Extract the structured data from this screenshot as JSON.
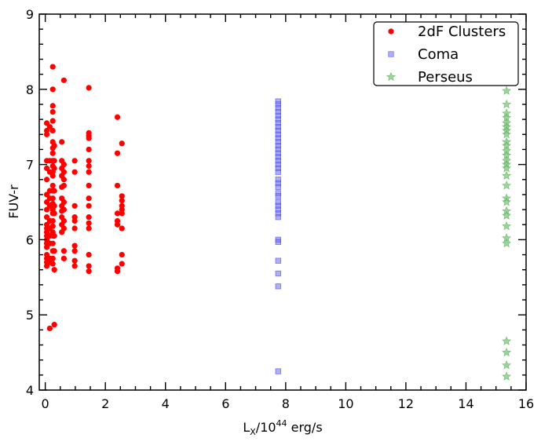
{
  "chart_data": {
    "type": "scatter",
    "xlabel": {
      "base": "L",
      "sub": "X",
      "mid": "/10",
      "sup": "44",
      "tail": " erg/s"
    },
    "ylabel": "FUV-r",
    "xlim": [
      -0.2,
      16
    ],
    "ylim": [
      4,
      9
    ],
    "x_ticks": [
      0,
      2,
      4,
      6,
      8,
      10,
      12,
      14,
      16
    ],
    "y_ticks": [
      4,
      5,
      6,
      7,
      8,
      9
    ],
    "grid": false,
    "legend_position": "top-right",
    "series": [
      {
        "name": "2dF Clusters",
        "marker": "circle",
        "color": "#ff0000",
        "points": [
          [
            0.05,
            7.55
          ],
          [
            0.05,
            7.45
          ],
          [
            0.05,
            7.4
          ],
          [
            0.05,
            7.05
          ],
          [
            0.05,
            6.95
          ],
          [
            0.05,
            6.8
          ],
          [
            0.05,
            6.6
          ],
          [
            0.05,
            6.5
          ],
          [
            0.05,
            6.4
          ],
          [
            0.05,
            6.3
          ],
          [
            0.05,
            6.2
          ],
          [
            0.05,
            6.15
          ],
          [
            0.05,
            6.1
          ],
          [
            0.05,
            6.05
          ],
          [
            0.05,
            6.0
          ],
          [
            0.05,
            5.95
          ],
          [
            0.05,
            5.9
          ],
          [
            0.05,
            5.8
          ],
          [
            0.05,
            5.75
          ],
          [
            0.05,
            5.7
          ],
          [
            0.05,
            5.65
          ],
          [
            0.15,
            7.5
          ],
          [
            0.15,
            7.05
          ],
          [
            0.15,
            6.9
          ],
          [
            0.15,
            6.65
          ],
          [
            0.15,
            6.55
          ],
          [
            0.15,
            6.45
          ],
          [
            0.15,
            6.25
          ],
          [
            0.15,
            6.15
          ],
          [
            0.15,
            6.05
          ],
          [
            0.15,
            5.95
          ],
          [
            0.15,
            5.75
          ],
          [
            0.15,
            5.7
          ],
          [
            0.15,
            4.82
          ],
          [
            0.25,
            8.3
          ],
          [
            0.25,
            8.0
          ],
          [
            0.25,
            7.78
          ],
          [
            0.25,
            7.7
          ],
          [
            0.25,
            7.58
          ],
          [
            0.25,
            7.45
          ],
          [
            0.25,
            7.3
          ],
          [
            0.25,
            7.22
          ],
          [
            0.25,
            7.15
          ],
          [
            0.25,
            7.05
          ],
          [
            0.25,
            6.98
          ],
          [
            0.25,
            6.9
          ],
          [
            0.25,
            6.85
          ],
          [
            0.25,
            6.72
          ],
          [
            0.25,
            6.65
          ],
          [
            0.25,
            6.55
          ],
          [
            0.25,
            6.48
          ],
          [
            0.25,
            6.4
          ],
          [
            0.25,
            6.35
          ],
          [
            0.25,
            6.25
          ],
          [
            0.25,
            6.18
          ],
          [
            0.25,
            6.1
          ],
          [
            0.25,
            6.05
          ],
          [
            0.25,
            5.95
          ],
          [
            0.25,
            5.85
          ],
          [
            0.25,
            5.75
          ],
          [
            0.25,
            5.68
          ],
          [
            0.3,
            7.25
          ],
          [
            0.3,
            7.05
          ],
          [
            0.3,
            6.95
          ],
          [
            0.3,
            6.65
          ],
          [
            0.3,
            6.45
          ],
          [
            0.3,
            6.35
          ],
          [
            0.3,
            6.05
          ],
          [
            0.3,
            5.85
          ],
          [
            0.3,
            5.6
          ],
          [
            0.3,
            4.87
          ],
          [
            0.55,
            7.3
          ],
          [
            0.55,
            7.05
          ],
          [
            0.55,
            6.95
          ],
          [
            0.55,
            6.85
          ],
          [
            0.55,
            6.7
          ],
          [
            0.55,
            6.55
          ],
          [
            0.55,
            6.45
          ],
          [
            0.55,
            6.38
          ],
          [
            0.55,
            6.3
          ],
          [
            0.55,
            6.2
          ],
          [
            0.55,
            6.1
          ],
          [
            0.62,
            8.12
          ],
          [
            0.62,
            7.0
          ],
          [
            0.62,
            6.9
          ],
          [
            0.62,
            6.8
          ],
          [
            0.62,
            6.72
          ],
          [
            0.62,
            6.5
          ],
          [
            0.62,
            6.4
          ],
          [
            0.62,
            6.25
          ],
          [
            0.62,
            6.15
          ],
          [
            0.62,
            5.85
          ],
          [
            0.62,
            5.75
          ],
          [
            0.98,
            7.05
          ],
          [
            0.98,
            6.9
          ],
          [
            0.98,
            6.45
          ],
          [
            0.98,
            6.3
          ],
          [
            0.98,
            6.25
          ],
          [
            0.98,
            6.15
          ],
          [
            0.98,
            5.92
          ],
          [
            0.98,
            5.85
          ],
          [
            0.98,
            5.72
          ],
          [
            0.98,
            5.65
          ],
          [
            1.45,
            8.02
          ],
          [
            1.45,
            7.42
          ],
          [
            1.45,
            7.38
          ],
          [
            1.45,
            7.35
          ],
          [
            1.45,
            7.2
          ],
          [
            1.45,
            7.05
          ],
          [
            1.45,
            6.98
          ],
          [
            1.45,
            6.9
          ],
          [
            1.45,
            6.72
          ],
          [
            1.45,
            6.55
          ],
          [
            1.45,
            6.45
          ],
          [
            1.45,
            6.3
          ],
          [
            1.45,
            6.22
          ],
          [
            1.45,
            6.15
          ],
          [
            1.45,
            5.8
          ],
          [
            1.45,
            5.65
          ],
          [
            1.45,
            5.58
          ],
          [
            2.4,
            7.63
          ],
          [
            2.4,
            7.15
          ],
          [
            2.4,
            6.72
          ],
          [
            2.4,
            6.35
          ],
          [
            2.4,
            6.25
          ],
          [
            2.4,
            6.2
          ],
          [
            2.4,
            5.62
          ],
          [
            2.4,
            5.58
          ],
          [
            2.55,
            7.28
          ],
          [
            2.55,
            6.58
          ],
          [
            2.55,
            6.52
          ],
          [
            2.55,
            6.45
          ],
          [
            2.55,
            6.4
          ],
          [
            2.55,
            6.35
          ],
          [
            2.55,
            6.15
          ],
          [
            2.55,
            5.8
          ],
          [
            2.55,
            5.68
          ]
        ]
      },
      {
        "name": "Coma",
        "marker": "square",
        "color": "#6b6bff",
        "points": [
          [
            7.75,
            7.84
          ],
          [
            7.75,
            7.8
          ],
          [
            7.75,
            7.75
          ],
          [
            7.75,
            7.7
          ],
          [
            7.75,
            7.65
          ],
          [
            7.75,
            7.6
          ],
          [
            7.75,
            7.55
          ],
          [
            7.75,
            7.5
          ],
          [
            7.75,
            7.45
          ],
          [
            7.75,
            7.4
          ],
          [
            7.75,
            7.35
          ],
          [
            7.75,
            7.3
          ],
          [
            7.75,
            7.25
          ],
          [
            7.75,
            7.2
          ],
          [
            7.75,
            7.15
          ],
          [
            7.75,
            7.1
          ],
          [
            7.75,
            7.05
          ],
          [
            7.75,
            7.0
          ],
          [
            7.75,
            6.95
          ],
          [
            7.75,
            6.9
          ],
          [
            7.75,
            6.8
          ],
          [
            7.75,
            6.75
          ],
          [
            7.75,
            6.7
          ],
          [
            7.75,
            6.62
          ],
          [
            7.75,
            6.58
          ],
          [
            7.75,
            6.5
          ],
          [
            7.75,
            6.45
          ],
          [
            7.75,
            6.4
          ],
          [
            7.75,
            6.35
          ],
          [
            7.75,
            6.3
          ],
          [
            7.75,
            6.0
          ],
          [
            7.75,
            5.97
          ],
          [
            7.75,
            5.72
          ],
          [
            7.75,
            5.55
          ],
          [
            7.75,
            5.38
          ],
          [
            7.75,
            4.25
          ]
        ]
      },
      {
        "name": "Perseus",
        "marker": "star",
        "color": "#7cc57c",
        "points": [
          [
            15.35,
            7.98
          ],
          [
            15.35,
            7.8
          ],
          [
            15.35,
            7.68
          ],
          [
            15.35,
            7.62
          ],
          [
            15.35,
            7.55
          ],
          [
            15.35,
            7.5
          ],
          [
            15.35,
            7.45
          ],
          [
            15.35,
            7.4
          ],
          [
            15.35,
            7.3
          ],
          [
            15.35,
            7.25
          ],
          [
            15.35,
            7.18
          ],
          [
            15.35,
            7.12
          ],
          [
            15.35,
            7.05
          ],
          [
            15.35,
            7.0
          ],
          [
            15.35,
            6.95
          ],
          [
            15.35,
            6.85
          ],
          [
            15.35,
            6.72
          ],
          [
            15.35,
            6.55
          ],
          [
            15.35,
            6.5
          ],
          [
            15.35,
            6.38
          ],
          [
            15.35,
            6.32
          ],
          [
            15.35,
            6.18
          ],
          [
            15.35,
            6.02
          ],
          [
            15.35,
            5.95
          ],
          [
            15.35,
            4.65
          ],
          [
            15.35,
            4.5
          ],
          [
            15.35,
            4.33
          ],
          [
            15.35,
            4.18
          ]
        ]
      }
    ]
  }
}
